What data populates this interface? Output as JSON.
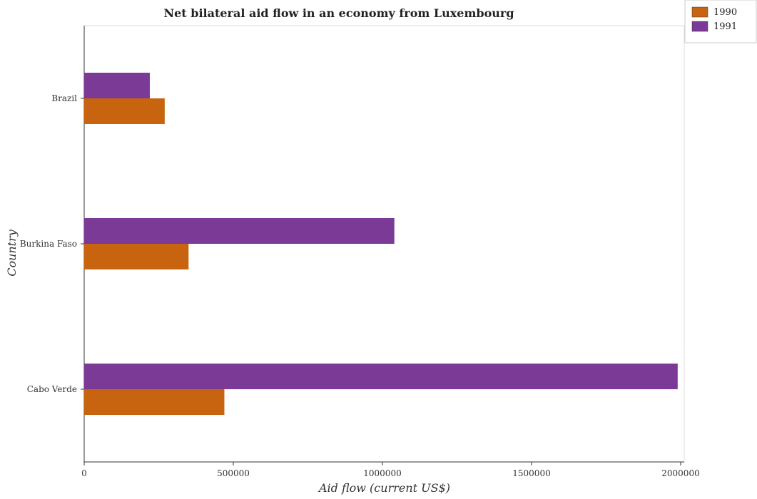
{
  "chart_data": {
    "type": "bar",
    "orientation": "horizontal",
    "title": "Net bilateral aid flow in an economy from Luxembourg",
    "xlabel": "Aid flow (current US$)",
    "ylabel": "Country",
    "categories": [
      "Brazil",
      "Burkina Faso",
      "Cabo Verde"
    ],
    "series": [
      {
        "name": "1990",
        "color": "#c8640f",
        "values": [
          270000,
          350000,
          470000
        ]
      },
      {
        "name": "1991",
        "color": "#7a3a96",
        "values": [
          220000,
          1040000,
          1990000
        ]
      }
    ],
    "xlim": [
      0,
      2100000
    ],
    "xticks": [
      0,
      500000,
      1000000,
      1500000,
      2000000
    ],
    "xtick_labels": [
      "0",
      "500000",
      "1000000",
      "1500000",
      "2000000"
    ],
    "grid": false,
    "legend_position": "top-right"
  }
}
